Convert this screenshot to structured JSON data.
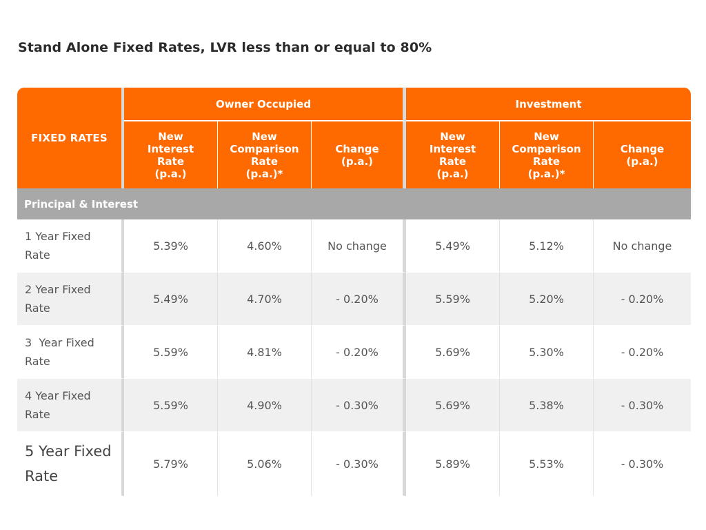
{
  "title": "Stand Alone Fixed Rates, LVR less than or equal to 80%",
  "table": {
    "corner_label": "FIXED RATES",
    "groups": {
      "owner": "Owner Occupied",
      "investment": "Investment"
    },
    "subheaders": {
      "owner": [
        [
          "New",
          "Interest",
          "Rate",
          "(p.a.)"
        ],
        [
          "New",
          "Comparison",
          "Rate",
          "(p.a.)*"
        ],
        [
          "Change",
          "(p.a.)"
        ]
      ],
      "investment": [
        [
          "New",
          "Interest",
          "Rate",
          "(p.a.)"
        ],
        [
          "New",
          "Comparison",
          "Rate",
          "(p.a.)*"
        ],
        [
          "Change",
          "(p.a.)"
        ]
      ]
    },
    "section_label": "Principal & Interest",
    "rows": [
      {
        "label": [
          "1 Year Fixed",
          "Rate"
        ],
        "cells": [
          "5.39%",
          "4.60%",
          "No change",
          "5.49%",
          "5.12%",
          "No change"
        ]
      },
      {
        "label": [
          "2 Year Fixed",
          "Rate"
        ],
        "cells": [
          "5.49%",
          "4.70%",
          "- 0.20%",
          "5.59%",
          "5.20%",
          "- 0.20%"
        ]
      },
      {
        "label": [
          "3  Year Fixed",
          "Rate"
        ],
        "cells": [
          "5.59%",
          "4.81%",
          "- 0.20%",
          "5.69%",
          "5.30%",
          "- 0.20%"
        ]
      },
      {
        "label": [
          "4 Year Fixed",
          "Rate"
        ],
        "cells": [
          "5.59%",
          "4.90%",
          "- 0.30%",
          "5.69%",
          "5.38%",
          "- 0.30%"
        ]
      },
      {
        "label": [
          "5 Year Fixed",
          "Rate"
        ],
        "cells": [
          "5.79%",
          "5.06%",
          "- 0.30%",
          "5.89%",
          "5.53%",
          "- 0.30%"
        ]
      }
    ]
  },
  "colors": {
    "header_orange": "#ff6a00",
    "section_gray": "#a8a8a8",
    "row_alt": "#f0f0f0"
  }
}
